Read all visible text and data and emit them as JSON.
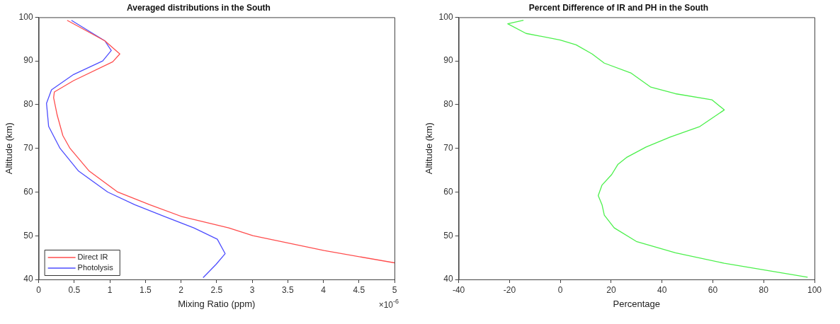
{
  "chart_data": [
    {
      "type": "line",
      "title": "Averaged distributions in the South",
      "xlabel": "Mixing Ratio (ppm)",
      "ylabel": "Altitude (km)",
      "xlim": [
        0,
        5
      ],
      "xticks": [
        0,
        0.5,
        1,
        1.5,
        2,
        2.5,
        3,
        3.5,
        4,
        4.5,
        5
      ],
      "ylim": [
        40,
        100
      ],
      "yticks": [
        40,
        50,
        60,
        70,
        80,
        90,
        100
      ],
      "legend": "bottom left",
      "annotations": [
        "×10$^{-6}$"
      ],
      "series": [
        {
          "name": "Direct IR",
          "color": "#ff4d4d",
          "x": [
            0.4,
            0.93,
            1.14,
            1.04,
            0.49,
            0.22,
            0.21,
            0.26,
            0.34,
            0.44,
            0.71,
            1.11,
            1.56,
            2.01,
            2.67,
            3.01,
            4.01,
            5.0
          ],
          "values": [
            99.3,
            94.6,
            91.6,
            89.8,
            85.5,
            82.9,
            81.6,
            77.6,
            72.9,
            70,
            64.8,
            60,
            57.1,
            54.4,
            51.8,
            50,
            46.6,
            43.8
          ]
        },
        {
          "name": "Photolysis",
          "color": "#4d4dff",
          "x": [
            0.46,
            0.93,
            1.02,
            0.9,
            0.49,
            0.18,
            0.11,
            0.14,
            0.3,
            0.56,
            0.97,
            1.35,
            1.77,
            2.18,
            2.51,
            2.62,
            2.49,
            2.31
          ],
          "values": [
            99.3,
            94.6,
            92.4,
            90,
            86.9,
            83.4,
            80.3,
            75,
            70,
            64.8,
            60,
            57.1,
            54.4,
            51.8,
            49.2,
            45.9,
            43.4,
            40.4
          ]
        }
      ]
    },
    {
      "type": "line",
      "title": "Percent Difference of IR and PH in the South",
      "xlabel": "Percentage",
      "ylabel": "Altitude (km)",
      "xlim": [
        -40,
        100
      ],
      "xticks": [
        -40,
        -20,
        0,
        20,
        40,
        60,
        80,
        100
      ],
      "ylim": [
        40,
        100
      ],
      "yticks": [
        40,
        50,
        60,
        70,
        80,
        90,
        100
      ],
      "series": [
        {
          "color": "#4cf04c",
          "x": [
            -14.5,
            -20.7,
            -13.5,
            0,
            6.2,
            12.5,
            17.3,
            27.9,
            35.6,
            45.3,
            59.7,
            64.5,
            54.9,
            43.3,
            33.7,
            26,
            22.6,
            20.2,
            16.4,
            14.9,
            16.4,
            17.3,
            21.2,
            29.9,
            45.3,
            64.5,
            97.3
          ],
          "values": [
            99.3,
            98.5,
            96.3,
            94.8,
            93.7,
            91.6,
            89.5,
            87.2,
            84,
            82.5,
            81.1,
            78.8,
            75,
            72.6,
            70.3,
            67.9,
            66.3,
            64,
            61.6,
            59.2,
            57.1,
            54.7,
            51.8,
            48.7,
            46.1,
            43.7,
            40.5
          ]
        }
      ]
    }
  ]
}
